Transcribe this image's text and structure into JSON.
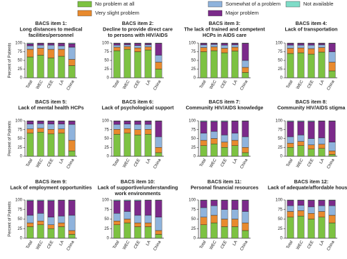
{
  "chart_data": [
    {
      "type": "bar",
      "stacked": true,
      "title": "BACS item 1:",
      "subtitle": [
        "Long distances to medical",
        "facilities/personnel"
      ],
      "ylabel": "Percent of Patients",
      "categories": [
        "Total",
        "WEC",
        "CEE",
        "LA",
        "China"
      ],
      "ylim": [
        0,
        100
      ],
      "yticks": [
        0,
        25,
        50,
        75,
        100
      ],
      "series": [
        {
          "name": "No problem at all",
          "color": "#7dc242",
          "values": [
            60,
            65,
            57,
            62,
            35
          ]
        },
        {
          "name": "Very slight problem",
          "color": "#e88a2e",
          "values": [
            22,
            20,
            25,
            20,
            18
          ]
        },
        {
          "name": "Somewhat of a problem",
          "color": "#8fb3dc",
          "values": [
            10,
            9,
            12,
            10,
            35
          ]
        },
        {
          "name": "Major problem",
          "color": "#7b2a8a",
          "values": [
            6,
            5,
            5,
            7,
            10
          ]
        },
        {
          "name": "Not available",
          "color": "#7fdcc8",
          "values": [
            2,
            1,
            1,
            1,
            2
          ]
        }
      ]
    },
    {
      "type": "bar",
      "stacked": true,
      "title": "BACS item 2:",
      "subtitle": [
        "Decline to provide direct care",
        "to persons with HIV/AIDS"
      ],
      "categories": [
        "Total",
        "WEC",
        "CEE",
        "LA",
        "China"
      ],
      "ylim": [
        0,
        100
      ],
      "yticks": [
        0,
        25,
        50,
        75,
        100
      ],
      "series": [
        {
          "name": "No problem at all",
          "color": "#7dc242",
          "values": [
            78,
            82,
            75,
            80,
            25
          ]
        },
        {
          "name": "Very slight problem",
          "color": "#e88a2e",
          "values": [
            10,
            8,
            11,
            9,
            20
          ]
        },
        {
          "name": "Somewhat of a problem",
          "color": "#8fb3dc",
          "values": [
            6,
            5,
            7,
            6,
            20
          ]
        },
        {
          "name": "Major problem",
          "color": "#7b2a8a",
          "values": [
            5,
            4,
            6,
            4,
            34
          ]
        },
        {
          "name": "Not available",
          "color": "#7fdcc8",
          "values": [
            1,
            1,
            1,
            1,
            1
          ]
        }
      ]
    },
    {
      "type": "bar",
      "stacked": true,
      "title": "BACS item 3:",
      "subtitle": [
        "The lack of trained and competent",
        "HCPs in AIDS care"
      ],
      "categories": [
        "Total",
        "WEC",
        "CEE",
        "LA",
        "China"
      ],
      "ylim": [
        0,
        100
      ],
      "yticks": [
        0,
        25,
        50,
        75,
        100
      ],
      "series": [
        {
          "name": "No problem at all",
          "color": "#7dc242",
          "values": [
            75,
            78,
            72,
            77,
            15
          ]
        },
        {
          "name": "Very slight problem",
          "color": "#e88a2e",
          "values": [
            12,
            11,
            13,
            11,
            15
          ]
        },
        {
          "name": "Somewhat of a problem",
          "color": "#8fb3dc",
          "values": [
            8,
            7,
            9,
            7,
            20
          ]
        },
        {
          "name": "Major problem",
          "color": "#7b2a8a",
          "values": [
            4,
            3,
            5,
            4,
            49
          ]
        },
        {
          "name": "Not available",
          "color": "#7fdcc8",
          "values": [
            1,
            1,
            1,
            1,
            1
          ]
        }
      ]
    },
    {
      "type": "bar",
      "stacked": true,
      "title": "BACS item 4:",
      "subtitle": [
        "Lack of transportation"
      ],
      "categories": [
        "Total",
        "WEC",
        "CEE",
        "LA",
        "China"
      ],
      "ylim": [
        0,
        100
      ],
      "yticks": [
        0,
        25,
        50,
        75,
        100
      ],
      "series": [
        {
          "name": "No problem at all",
          "color": "#7dc242",
          "values": [
            70,
            72,
            68,
            74,
            20
          ]
        },
        {
          "name": "Very slight problem",
          "color": "#e88a2e",
          "values": [
            15,
            14,
            16,
            13,
            25
          ]
        },
        {
          "name": "Somewhat of a problem",
          "color": "#8fb3dc",
          "values": [
            9,
            8,
            10,
            8,
            30
          ]
        },
        {
          "name": "Major problem",
          "color": "#7b2a8a",
          "values": [
            5,
            5,
            5,
            4,
            24
          ]
        },
        {
          "name": "Not available",
          "color": "#7fdcc8",
          "values": [
            1,
            1,
            1,
            1,
            1
          ]
        }
      ]
    },
    {
      "type": "bar",
      "stacked": true,
      "title": "BACS item 5:",
      "subtitle": [
        "Lack of mental health HCPs"
      ],
      "ylabel": "Percent of Patients",
      "categories": [
        "Total",
        "WEC",
        "CEE",
        "LA",
        "China"
      ],
      "ylim": [
        0,
        100
      ],
      "yticks": [
        0,
        25,
        50,
        75,
        100
      ],
      "series": [
        {
          "name": "No problem at all",
          "color": "#7dc242",
          "values": [
            65,
            68,
            63,
            65,
            15
          ]
        },
        {
          "name": "Very slight problem",
          "color": "#e88a2e",
          "values": [
            12,
            11,
            13,
            12,
            30
          ]
        },
        {
          "name": "Somewhat of a problem",
          "color": "#8fb3dc",
          "values": [
            14,
            13,
            15,
            14,
            45
          ]
        },
        {
          "name": "Major problem",
          "color": "#7b2a8a",
          "values": [
            8,
            7,
            8,
            8,
            9
          ]
        },
        {
          "name": "Not available",
          "color": "#7fdcc8",
          "values": [
            1,
            1,
            1,
            1,
            1
          ]
        }
      ]
    },
    {
      "type": "bar",
      "stacked": true,
      "title": "BACS item 6:",
      "subtitle": [
        "Lack of psychological support"
      ],
      "categories": [
        "Total",
        "WEC",
        "CEE",
        "LA",
        "China"
      ],
      "ylim": [
        0,
        100
      ],
      "yticks": [
        0,
        25,
        50,
        75,
        100
      ],
      "series": [
        {
          "name": "No problem at all",
          "color": "#7dc242",
          "values": [
            62,
            65,
            60,
            62,
            10
          ]
        },
        {
          "name": "Very slight problem",
          "color": "#e88a2e",
          "values": [
            14,
            13,
            15,
            14,
            15
          ]
        },
        {
          "name": "Somewhat of a problem",
          "color": "#8fb3dc",
          "values": [
            14,
            13,
            15,
            14,
            30
          ]
        },
        {
          "name": "Major problem",
          "color": "#7b2a8a",
          "values": [
            9,
            8,
            9,
            9,
            44
          ]
        },
        {
          "name": "Not available",
          "color": "#7fdcc8",
          "values": [
            1,
            1,
            1,
            1,
            1
          ]
        }
      ]
    },
    {
      "type": "bar",
      "stacked": true,
      "title": "BACS item 7:",
      "subtitle": [
        "Community HIV/AIDS knowledge"
      ],
      "categories": [
        "Total",
        "WEC",
        "CEE",
        "LA",
        "China"
      ],
      "ylim": [
        0,
        100
      ],
      "yticks": [
        0,
        25,
        50,
        75,
        100
      ],
      "series": [
        {
          "name": "No problem at all",
          "color": "#7dc242",
          "values": [
            30,
            35,
            25,
            30,
            10
          ]
        },
        {
          "name": "Very slight problem",
          "color": "#e88a2e",
          "values": [
            15,
            15,
            15,
            15,
            15
          ]
        },
        {
          "name": "Somewhat of a problem",
          "color": "#8fb3dc",
          "values": [
            20,
            20,
            20,
            20,
            30
          ]
        },
        {
          "name": "Major problem",
          "color": "#7b2a8a",
          "values": [
            33,
            28,
            38,
            34,
            44
          ]
        },
        {
          "name": "Not available",
          "color": "#7fdcc8",
          "values": [
            2,
            2,
            2,
            1,
            1
          ]
        }
      ]
    },
    {
      "type": "bar",
      "stacked": true,
      "title": "BACS item 8:",
      "subtitle": [
        "Community HIV/AIDS stigma"
      ],
      "categories": [
        "Total",
        "WEC",
        "CEE",
        "LA",
        "China"
      ],
      "ylim": [
        0,
        100
      ],
      "yticks": [
        0,
        25,
        50,
        75,
        100
      ],
      "series": [
        {
          "name": "No problem at all",
          "color": "#7dc242",
          "values": [
            25,
            30,
            20,
            22,
            5
          ]
        },
        {
          "name": "Very slight problem",
          "color": "#e88a2e",
          "values": [
            12,
            12,
            12,
            12,
            10
          ]
        },
        {
          "name": "Somewhat of a problem",
          "color": "#8fb3dc",
          "values": [
            18,
            18,
            18,
            18,
            25
          ]
        },
        {
          "name": "Major problem",
          "color": "#7b2a8a",
          "values": [
            43,
            38,
            48,
            47,
            59
          ]
        },
        {
          "name": "Not available",
          "color": "#7fdcc8",
          "values": [
            2,
            2,
            2,
            1,
            1
          ]
        }
      ]
    },
    {
      "type": "bar",
      "stacked": true,
      "title": "BACS item 9:",
      "subtitle": [
        "Lack of employment opportunities"
      ],
      "ylabel": "Percent of Patients",
      "categories": [
        "Total",
        "WEC",
        "CEE",
        "LA",
        "China"
      ],
      "ylim": [
        0,
        100
      ],
      "yticks": [
        0,
        25,
        50,
        75,
        100
      ],
      "series": [
        {
          "name": "No problem at all",
          "color": "#7dc242",
          "values": [
            30,
            35,
            25,
            30,
            10
          ]
        },
        {
          "name": "Very slight problem",
          "color": "#e88a2e",
          "values": [
            10,
            10,
            10,
            10,
            10
          ]
        },
        {
          "name": "Somewhat of a problem",
          "color": "#8fb3dc",
          "values": [
            20,
            20,
            20,
            18,
            40
          ]
        },
        {
          "name": "Major problem",
          "color": "#7b2a8a",
          "values": [
            38,
            33,
            43,
            41,
            39
          ]
        },
        {
          "name": "Not available",
          "color": "#7fdcc8",
          "values": [
            2,
            2,
            2,
            1,
            1
          ]
        }
      ]
    },
    {
      "type": "bar",
      "stacked": true,
      "title": "BACS item 10:",
      "subtitle": [
        "Lack of supportive/understanding",
        "work environments"
      ],
      "categories": [
        "Total",
        "WEC",
        "CEE",
        "LA",
        "China"
      ],
      "ylim": [
        0,
        100
      ],
      "yticks": [
        0,
        25,
        50,
        75,
        100
      ],
      "series": [
        {
          "name": "No problem at all",
          "color": "#7dc242",
          "values": [
            35,
            40,
            30,
            30,
            10
          ]
        },
        {
          "name": "Very slight problem",
          "color": "#e88a2e",
          "values": [
            10,
            10,
            10,
            10,
            10
          ]
        },
        {
          "name": "Somewhat of a problem",
          "color": "#8fb3dc",
          "values": [
            20,
            20,
            20,
            20,
            35
          ]
        },
        {
          "name": "Major problem",
          "color": "#7b2a8a",
          "values": [
            33,
            28,
            38,
            39,
            44
          ]
        },
        {
          "name": "Not available",
          "color": "#7fdcc8",
          "values": [
            2,
            2,
            2,
            1,
            1
          ]
        }
      ]
    },
    {
      "type": "bar",
      "stacked": true,
      "title": "BACS item 11:",
      "subtitle": [
        "Personal financial resources"
      ],
      "categories": [
        "Total",
        "WEC",
        "CEE",
        "LA",
        "China"
      ],
      "ylim": [
        0,
        100
      ],
      "yticks": [
        0,
        25,
        50,
        75,
        100
      ],
      "series": [
        {
          "name": "No problem at all",
          "color": "#7dc242",
          "values": [
            35,
            40,
            30,
            30,
            20
          ]
        },
        {
          "name": "Very slight problem",
          "color": "#e88a2e",
          "values": [
            20,
            20,
            20,
            20,
            20
          ]
        },
        {
          "name": "Somewhat of a problem",
          "color": "#8fb3dc",
          "values": [
            25,
            25,
            25,
            25,
            30
          ]
        },
        {
          "name": "Major problem",
          "color": "#7b2a8a",
          "values": [
            19,
            14,
            24,
            24,
            29
          ]
        },
        {
          "name": "Not available",
          "color": "#7fdcc8",
          "values": [
            1,
            1,
            1,
            1,
            1
          ]
        }
      ]
    },
    {
      "type": "bar",
      "stacked": true,
      "title": "BACS item 12:",
      "subtitle": [
        "Lack of adequate/affordable housing"
      ],
      "categories": [
        "Total",
        "WEC",
        "CEE",
        "LA",
        "China"
      ],
      "ylim": [
        0,
        100
      ],
      "yticks": [
        0,
        25,
        50,
        75,
        100
      ],
      "series": [
        {
          "name": "No problem at all",
          "color": "#7dc242",
          "values": [
            55,
            58,
            50,
            55,
            40
          ]
        },
        {
          "name": "Very slight problem",
          "color": "#e88a2e",
          "values": [
            15,
            14,
            15,
            15,
            20
          ]
        },
        {
          "name": "Somewhat of a problem",
          "color": "#8fb3dc",
          "values": [
            15,
            14,
            17,
            15,
            25
          ]
        },
        {
          "name": "Major problem",
          "color": "#7b2a8a",
          "values": [
            14,
            13,
            17,
            14,
            14
          ]
        },
        {
          "name": "Not available",
          "color": "#7fdcc8",
          "values": [
            1,
            1,
            1,
            1,
            1
          ]
        }
      ]
    }
  ]
}
